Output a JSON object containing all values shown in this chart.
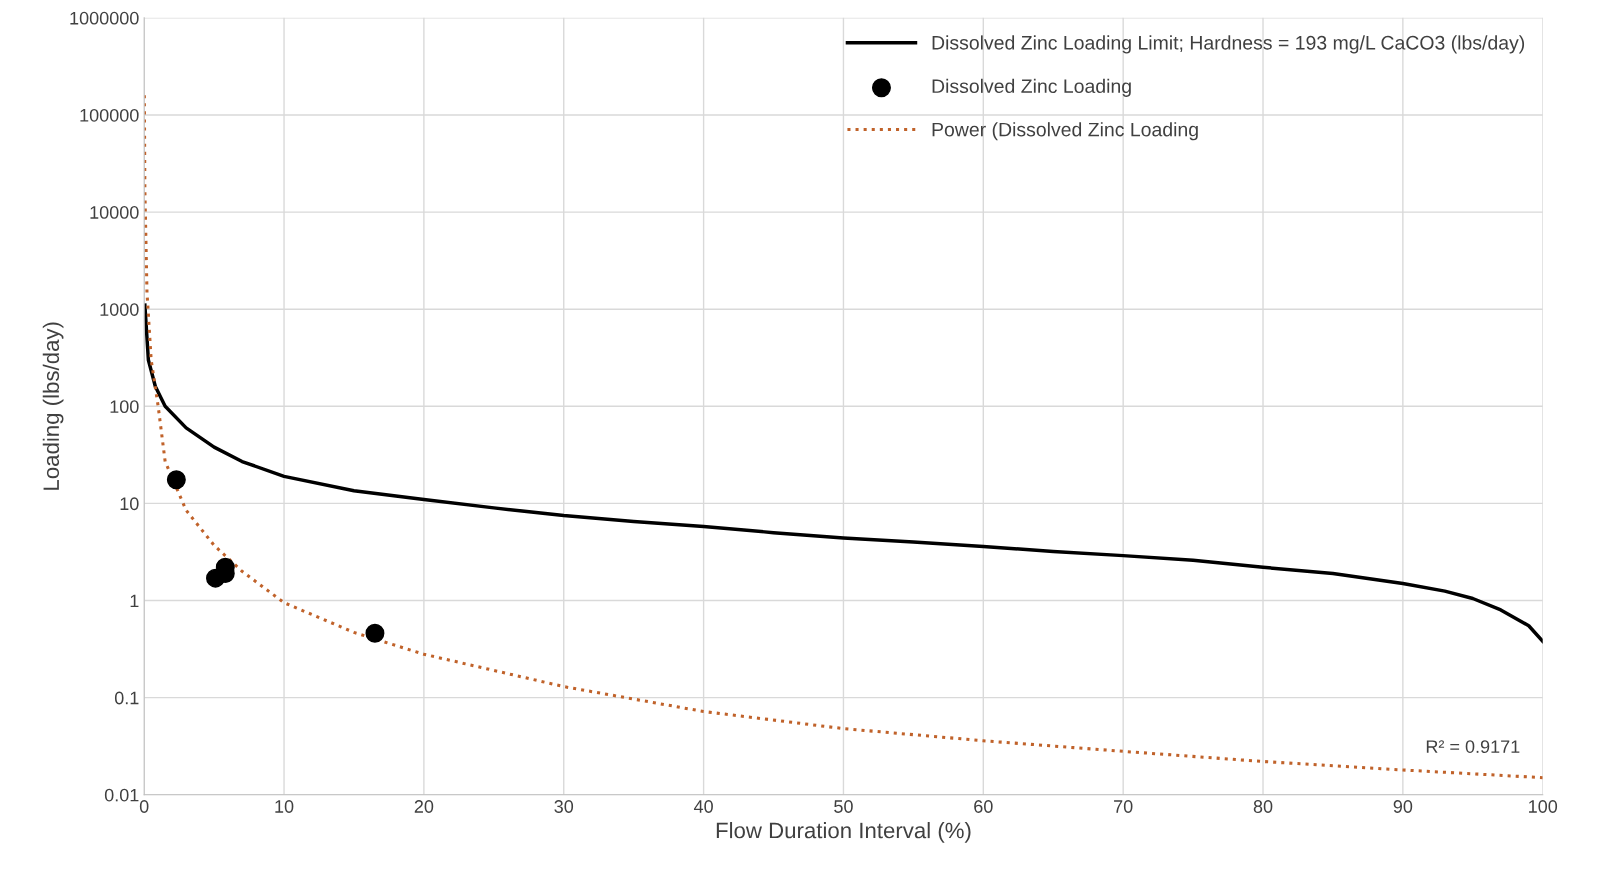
{
  "chart_data": {
    "type": "line",
    "xlabel": "Flow Duration Interval (%)",
    "ylabel": "Loading (lbs/day)",
    "log": "y",
    "xlim": [
      0,
      100
    ],
    "xticks": [
      0,
      10,
      20,
      30,
      40,
      50,
      60,
      70,
      80,
      90,
      100
    ],
    "ylim": [
      0.01,
      1000000
    ],
    "yticks": [
      0.01,
      0.1,
      1,
      10,
      100,
      1000,
      10000,
      100000,
      1000000
    ],
    "grid": true,
    "legend": "top right",
    "annotations": [
      "R² = 0.9171"
    ],
    "series": [
      {
        "name": "Dissolved Zinc Loading Limit; Hardness = 193 mg/L CaCO3 (lbs/day)",
        "color": "#000000",
        "line_style": "solid",
        "marker": "none",
        "x": [
          0.05,
          0.3,
          0.8,
          1.5,
          3,
          5,
          7,
          10,
          15,
          20,
          25,
          30,
          35,
          40,
          45,
          50,
          55,
          60,
          65,
          70,
          75,
          80,
          85,
          90,
          93,
          95,
          97,
          99,
          100
        ],
        "values": [
          1100,
          300,
          160,
          100,
          60,
          38,
          27,
          19,
          13.5,
          11,
          9,
          7.5,
          6.5,
          5.8,
          5,
          4.4,
          4,
          3.6,
          3.2,
          2.9,
          2.6,
          2.2,
          1.9,
          1.5,
          1.25,
          1.05,
          0.8,
          0.55,
          0.38
        ]
      },
      {
        "name": "Dissolved Zinc Loading",
        "type": "scatter",
        "color": "#000000",
        "marker": "circle",
        "x": [
          2.3,
          5.1,
          5.8,
          5.8,
          16.5
        ],
        "values": [
          17.5,
          1.7,
          2.2,
          1.9,
          0.46
        ]
      },
      {
        "name": "Power (Dissolved Zinc Loading",
        "color": "#c0622a",
        "line_style": "dotted",
        "marker": "none",
        "x": [
          0.012,
          0.05,
          0.2,
          0.5,
          1,
          1.5,
          3,
          5,
          7,
          10,
          15,
          20,
          30,
          40,
          50,
          60,
          70,
          80,
          90,
          100
        ],
        "values": [
          160000,
          17000,
          1500,
          300,
          100,
          27,
          8.5,
          3.7,
          2.0,
          0.95,
          0.47,
          0.28,
          0.13,
          0.072,
          0.048,
          0.036,
          0.028,
          0.022,
          0.018,
          0.015
        ]
      }
    ]
  }
}
